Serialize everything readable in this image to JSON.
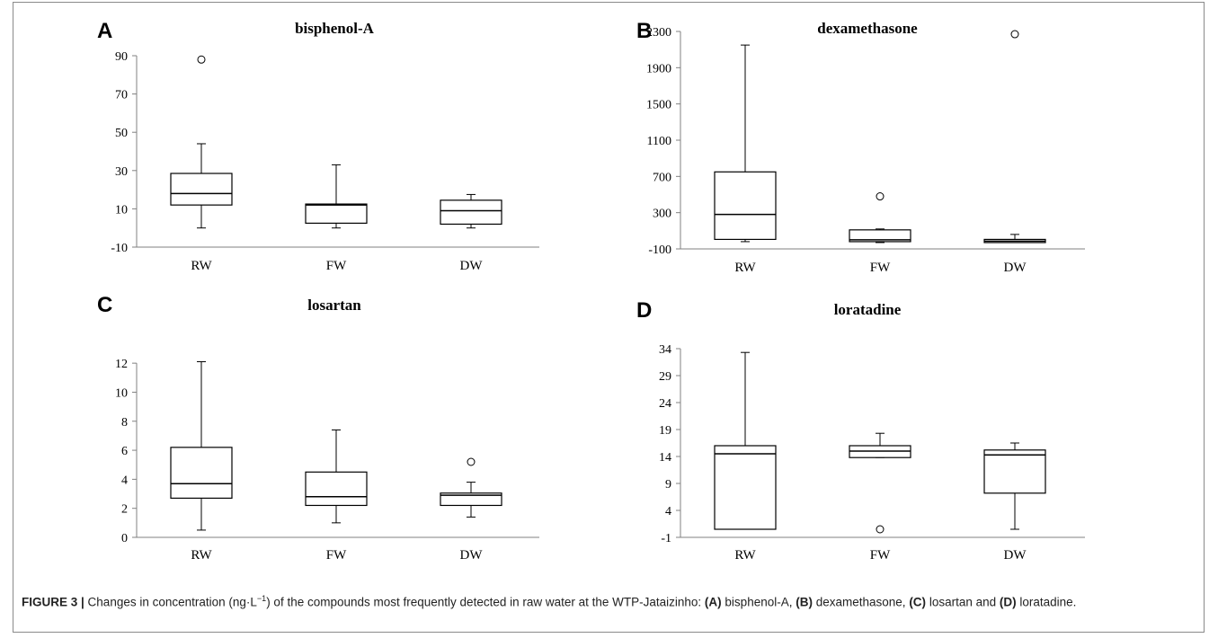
{
  "chart_data": [
    {
      "type": "boxplot",
      "letter": "A",
      "title": "bisphenol-A",
      "ylim": [
        -10,
        90
      ],
      "yticks": [
        -10,
        10,
        30,
        50,
        70,
        90
      ],
      "categories": [
        "RW",
        "FW",
        "DW"
      ],
      "boxes": [
        {
          "whisker_low": 0,
          "q1": 12,
          "median": 18,
          "q3": 28.5,
          "whisker_high": 44,
          "outliers": [
            88
          ]
        },
        {
          "whisker_low": 0,
          "q1": 2.5,
          "median": 12,
          "q3": 12.5,
          "whisker_high": 33,
          "outliers": []
        },
        {
          "whisker_low": 0,
          "q1": 2,
          "median": 9,
          "q3": 14.5,
          "whisker_high": 17.5,
          "outliers": []
        }
      ]
    },
    {
      "type": "boxplot",
      "letter": "B",
      "title": "dexamethasone",
      "ylim": [
        -100,
        2300
      ],
      "yticks": [
        -100,
        300,
        700,
        1100,
        1500,
        1900,
        2300
      ],
      "categories": [
        "RW",
        "FW",
        "DW"
      ],
      "boxes": [
        {
          "whisker_low": -20,
          "q1": 5,
          "median": 280,
          "q3": 750,
          "whisker_high": 2150,
          "outliers": []
        },
        {
          "whisker_low": -30,
          "q1": -20,
          "median": 0,
          "q3": 110,
          "whisker_high": 120,
          "outliers": [
            480
          ]
        },
        {
          "whisker_low": -30,
          "q1": -30,
          "median": -15,
          "q3": 5,
          "whisker_high": 60,
          "outliers": [
            2270
          ]
        }
      ]
    },
    {
      "type": "boxplot",
      "letter": "C",
      "title": "losartan",
      "ylim": [
        0,
        13
      ],
      "yticks": [
        0,
        2,
        4,
        6,
        8,
        10,
        12
      ],
      "categories": [
        "RW",
        "FW",
        "DW"
      ],
      "boxes": [
        {
          "whisker_low": 0.5,
          "q1": 2.7,
          "median": 3.7,
          "q3": 6.2,
          "whisker_high": 12.1,
          "outliers": []
        },
        {
          "whisker_low": 1.0,
          "q1": 2.2,
          "median": 2.8,
          "q3": 4.5,
          "whisker_high": 7.4,
          "outliers": []
        },
        {
          "whisker_low": 1.4,
          "q1": 2.2,
          "median": 2.9,
          "q3": 3.05,
          "whisker_high": 3.8,
          "outliers": [
            5.2
          ]
        }
      ]
    },
    {
      "type": "boxplot",
      "letter": "D",
      "title": "loratadine",
      "ylim": [
        -1,
        34
      ],
      "yticks": [
        -1,
        4,
        9,
        14,
        19,
        24,
        29,
        34
      ],
      "categories": [
        "RW",
        "FW",
        "DW"
      ],
      "boxes": [
        {
          "whisker_low": 0.5,
          "q1": 0.5,
          "median": 14.5,
          "q3": 16,
          "whisker_high": 33.3,
          "outliers": []
        },
        {
          "whisker_low": 13.8,
          "q1": 13.8,
          "median": 15,
          "q3": 16,
          "whisker_high": 18.3,
          "outliers": [
            0.5
          ]
        },
        {
          "whisker_low": 0.5,
          "q1": 7.2,
          "median": 14.3,
          "q3": 15.2,
          "whisker_high": 16.5,
          "outliers": []
        }
      ]
    }
  ],
  "caption": {
    "figure_label": "FIGURE 3 |",
    "text_1": " Changes in concentration (ng·L",
    "superscript": "−1",
    "text_2": ") of the compounds most frequently detected in raw water at the WTP-Jataizinho: ",
    "a_label": "(A)",
    "a_text": " bisphenol-A, ",
    "b_label": "(B)",
    "b_text": " dexamethasone, ",
    "c_label": "(C)",
    "c_text": " losartan and ",
    "d_label": "(D)",
    "d_text": " loratadine."
  }
}
